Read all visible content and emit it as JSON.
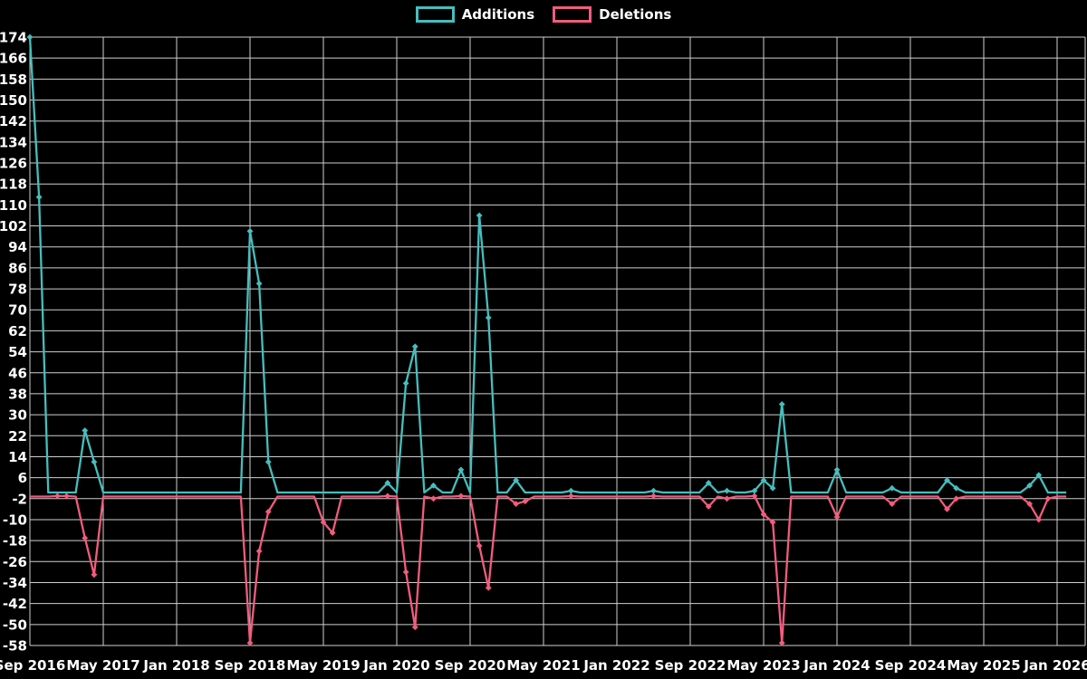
{
  "legend": {
    "items": [
      {
        "label": "Additions",
        "color": "#46BEBE"
      },
      {
        "label": "Deletions",
        "color": "#F25C7D"
      }
    ]
  },
  "chart_data": {
    "type": "line",
    "title": "",
    "xlabel": "",
    "ylabel": "",
    "background_color": "#000000",
    "grid": true,
    "grid_color": "#cfcfcf",
    "text_color": "#ffffff",
    "legend_position": "top-center",
    "x_start_month": "2016-09",
    "x_end_month": "2026-02",
    "x_tick_labels": [
      "Sep 2016",
      "May 2017",
      "Jan 2018",
      "Sep 2018",
      "May 2019",
      "Jan 2020",
      "Sep 2020",
      "May 2021",
      "Jan 2022",
      "Sep 2022",
      "May 2023",
      "Jan 2024",
      "Sep 2024",
      "May 2025",
      "Jan 2026"
    ],
    "x_tick_interval_months": 8,
    "y_ticks": [
      174,
      166,
      158,
      150,
      142,
      134,
      126,
      118,
      110,
      102,
      94,
      86,
      78,
      70,
      62,
      54,
      46,
      38,
      30,
      22,
      14,
      6,
      -2,
      -10,
      -18,
      -26,
      -34,
      -42,
      -50,
      -58
    ],
    "ylim": [
      -58,
      174
    ],
    "marker_shape": "diamond",
    "series": [
      {
        "name": "Additions",
        "color": "#46BEBE",
        "default_value": 0,
        "nonzero_points": {
          "2016-09": 174,
          "2016-10": 113,
          "2017-03": 24,
          "2017-04": 12,
          "2018-09": 100,
          "2018-10": 80,
          "2018-11": 12,
          "2019-12": 4,
          "2020-02": 42,
          "2020-03": 56,
          "2020-05": 3,
          "2020-08": 9,
          "2020-10": 106,
          "2020-11": 67,
          "2021-02": 5,
          "2021-08": 1,
          "2022-05": 1,
          "2022-11": 4,
          "2023-01": 1,
          "2023-04": 1,
          "2023-05": 5,
          "2023-06": 2,
          "2023-07": 34,
          "2024-01": 9,
          "2024-07": 2,
          "2025-01": 5,
          "2025-02": 2,
          "2025-10": 3,
          "2025-11": 7
        }
      },
      {
        "name": "Deletions",
        "color": "#F25C7D",
        "default_value": 0,
        "nonzero_points": {
          "2016-12": -1,
          "2017-01": -1,
          "2017-03": -17,
          "2017-04": -31,
          "2018-09": -57,
          "2018-10": -22,
          "2018-11": -7,
          "2019-05": -11,
          "2019-06": -15,
          "2019-12": -1,
          "2020-02": -30,
          "2020-03": -51,
          "2020-05": -2,
          "2020-08": -1,
          "2020-10": -20,
          "2020-11": -36,
          "2021-02": -4,
          "2021-03": -3,
          "2021-08": -1,
          "2022-05": -1,
          "2022-11": -5,
          "2023-01": -2,
          "2023-04": -1,
          "2023-05": -8,
          "2023-06": -11,
          "2023-07": -57,
          "2024-01": -9,
          "2024-07": -4,
          "2025-01": -6,
          "2025-02": -2,
          "2025-10": -4,
          "2025-11": -10,
          "2025-12": -2
        }
      }
    ]
  }
}
